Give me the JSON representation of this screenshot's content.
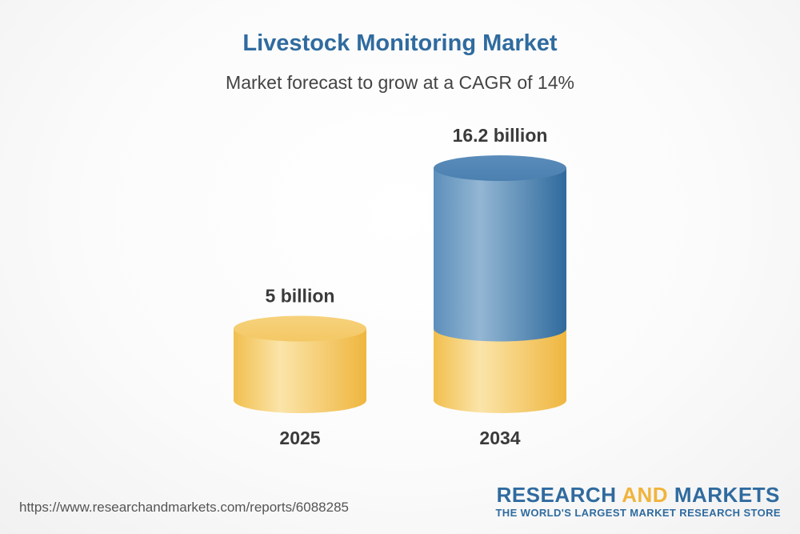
{
  "chart_data": {
    "type": "bar",
    "title": "Livestock Monitoring Market",
    "subtitle": "Market forecast to grow at a CAGR of 14%",
    "categories": [
      "2025",
      "2034"
    ],
    "values": [
      5,
      16.2
    ],
    "value_labels": [
      "5 billion",
      "16.2 billion"
    ],
    "colors": {
      "base": "#f2c45c",
      "growth": "#3e79aa",
      "title": "#2f6b9f"
    }
  },
  "footer": {
    "url": "https://www.researchandmarkets.com/reports/6088285",
    "brand_word1": "RESEARCH",
    "brand_word2": "AND",
    "brand_word3": "MARKETS",
    "tagline": "THE WORLD'S LARGEST MARKET RESEARCH STORE"
  }
}
